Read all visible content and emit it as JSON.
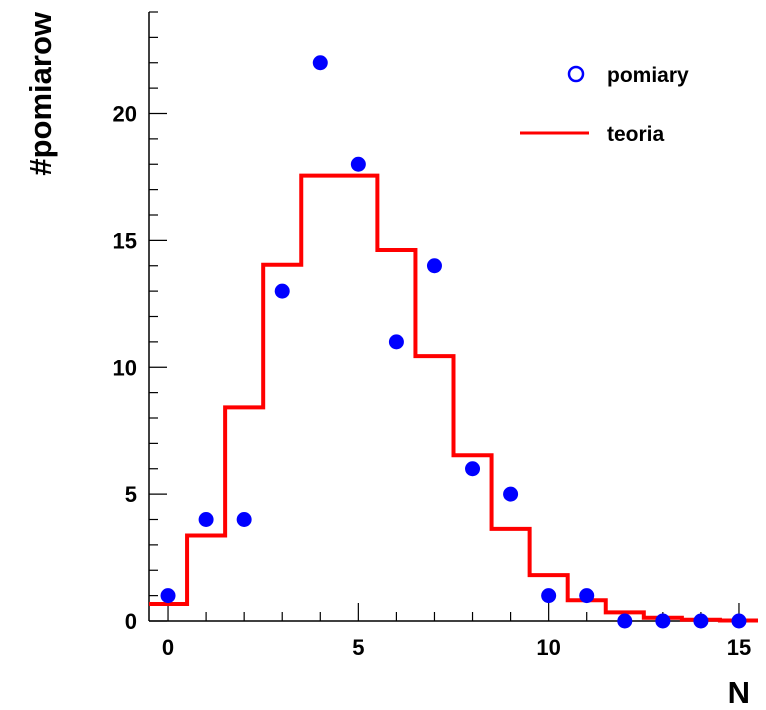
{
  "chart_data": {
    "type": "scatter",
    "title": "",
    "xlabel": "N",
    "ylabel": "#pomiarow",
    "xlim": [
      -0.5,
      15.5
    ],
    "ylim": [
      0,
      24
    ],
    "x_ticks": [
      0,
      5,
      10,
      15
    ],
    "y_ticks": [
      0,
      5,
      10,
      15,
      20
    ],
    "grid": false,
    "legend_position": "top-right",
    "series": [
      {
        "name": "pomiary",
        "kind": "points",
        "color": "#0000ff",
        "x": [
          0,
          1,
          2,
          3,
          4,
          5,
          6,
          7,
          8,
          9,
          10,
          11,
          12,
          13,
          14,
          15
        ],
        "values": [
          1,
          4,
          4,
          13,
          22,
          18,
          11,
          14,
          6,
          5,
          1,
          1,
          0,
          0,
          0,
          0
        ]
      },
      {
        "name": "teoria",
        "kind": "step",
        "color": "#ff0000",
        "x": [
          0,
          1,
          2,
          3,
          4,
          5,
          6,
          7,
          8,
          9,
          10,
          11,
          12,
          13,
          14,
          15
        ],
        "values": [
          0.67,
          3.37,
          8.42,
          14.04,
          17.55,
          17.55,
          14.62,
          10.44,
          6.53,
          3.63,
          1.81,
          0.82,
          0.34,
          0.13,
          0.05,
          0.02
        ]
      }
    ]
  }
}
